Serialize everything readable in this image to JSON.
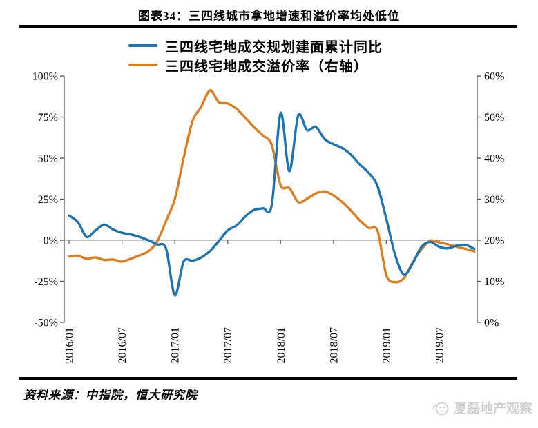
{
  "title": "图表34：三四线城市拿地增速和溢价率均处低位",
  "legend": {
    "items": [
      {
        "label": "三四线宅地成交规划建面累计同比",
        "color": "#1C74B4"
      },
      {
        "label": "三四线宅地成交溢价率（右轴）",
        "color": "#DD7E1E"
      }
    ]
  },
  "source_note": "资料来源：中指院，恒大研究院",
  "watermark": {
    "icon": "panda-face-icon",
    "text": "夏磊地产观察",
    "color": "#cfcfcf"
  },
  "chart_data": {
    "type": "line",
    "title": "图表34：三四线城市拿地增速和溢价率均处低位",
    "grid": false,
    "legend_position": "top",
    "x": [
      "2016/01",
      "2016/02",
      "2016/03",
      "2016/04",
      "2016/05",
      "2016/06",
      "2016/07",
      "2016/08",
      "2016/09",
      "2016/10",
      "2016/11",
      "2016/12",
      "2017/01",
      "2017/02",
      "2017/03",
      "2017/04",
      "2017/05",
      "2017/06",
      "2017/07",
      "2017/08",
      "2017/09",
      "2017/10",
      "2017/11",
      "2017/12",
      "2018/01",
      "2018/02",
      "2018/03",
      "2018/04",
      "2018/05",
      "2018/06",
      "2018/07",
      "2018/08",
      "2018/09",
      "2018/10",
      "2018/11",
      "2018/12",
      "2019/01",
      "2019/02",
      "2019/03",
      "2019/04",
      "2019/05",
      "2019/06",
      "2019/07",
      "2019/08",
      "2019/09",
      "2019/10",
      "2019/11"
    ],
    "x_tick_labels": [
      "2016/01",
      "2016/07",
      "2017/01",
      "2017/07",
      "2018/01",
      "2018/07",
      "2019/01",
      "2019/07"
    ],
    "x_tick_indices": [
      0,
      6,
      12,
      18,
      24,
      30,
      36,
      42
    ],
    "series": [
      {
        "name": "三四线宅地成交规划建面累计同比",
        "axis": "left",
        "color": "#1C74B4",
        "values": [
          15,
          11,
          2,
          6,
          9.5,
          6.5,
          4.5,
          3.5,
          2,
          0,
          -2.5,
          -5,
          -33.5,
          -13,
          -12.5,
          -10.5,
          -6.5,
          -0.5,
          6,
          9,
          14.5,
          18.5,
          19.5,
          21.5,
          77.5,
          42,
          76,
          67,
          69,
          61.5,
          58.5,
          56,
          52,
          46,
          41,
          33,
          13,
          -9,
          -21,
          -14,
          -4,
          -1,
          -4,
          -4.9,
          -3.2,
          -2.8,
          -5.3
        ]
      },
      {
        "name": "三四线宅地成交溢价率（右轴）",
        "axis": "right",
        "color": "#DD7E1E",
        "values": [
          16,
          16.2,
          15.5,
          15.8,
          15.2,
          15.3,
          14.8,
          15.5,
          16.3,
          17.3,
          19.7,
          24.7,
          30,
          40,
          49,
          52.5,
          56.5,
          53.6,
          53.3,
          52,
          49.8,
          47.5,
          45.5,
          43.2,
          33.4,
          32.7,
          29.3,
          30.1,
          31.4,
          31.9,
          30.9,
          29.3,
          27.2,
          24.8,
          23,
          22.3,
          11.5,
          9.8,
          10.8,
          14.7,
          17.8,
          19.9,
          19.5,
          19,
          18.4,
          17.9,
          17.3
        ]
      }
    ],
    "left_axis": {
      "unit": "%",
      "range": [
        -50,
        100
      ],
      "ticks": [
        100,
        75,
        50,
        25,
        0,
        -25,
        -50
      ],
      "tick_labels": [
        "100%",
        "75%",
        "50%",
        "25%",
        "0%",
        "-25%",
        "-50%"
      ]
    },
    "right_axis": {
      "unit": "%",
      "range": [
        0,
        60
      ],
      "ticks": [
        60,
        50,
        40,
        30,
        20,
        10,
        0
      ],
      "tick_labels": [
        "60%",
        "50%",
        "40%",
        "30%",
        "20%",
        "10%",
        "0%"
      ]
    }
  }
}
